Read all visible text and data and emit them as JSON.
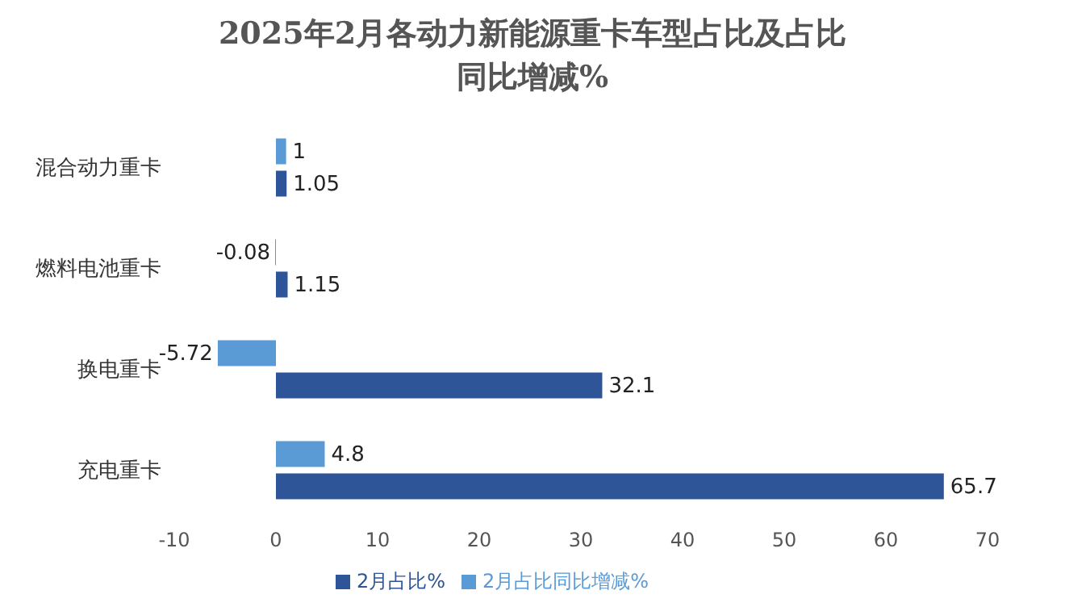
{
  "chart_data": {
    "type": "bar",
    "orientation": "horizontal",
    "title": "2025年2月各动力新能源重卡车型占比及占比同比增减%",
    "categories": [
      "混合动力重卡",
      "燃料电池重卡",
      "换电重卡",
      "充电重卡"
    ],
    "series": [
      {
        "name": "2月占比同比增减%",
        "color": "#5b9bd5",
        "values": [
          1,
          -0.08,
          -5.72,
          4.8
        ]
      },
      {
        "name": "2月占比%",
        "color": "#2e5597",
        "values": [
          1.05,
          1.15,
          32.1,
          65.7
        ]
      }
    ],
    "xlim": [
      -10,
      70
    ],
    "xticks": [
      -10,
      0,
      10,
      20,
      30,
      40,
      50,
      60,
      70
    ],
    "grid": false,
    "legend": "bottom",
    "data_labels": true
  }
}
